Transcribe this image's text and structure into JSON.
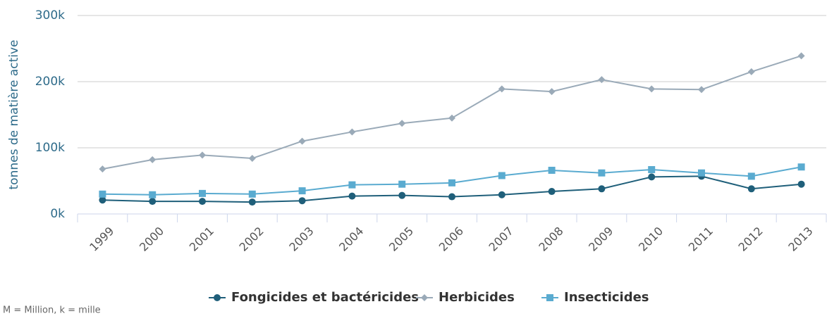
{
  "chart_data": {
    "type": "line",
    "y_label": "tonnes de matière active",
    "note": "M = Million, k = mille",
    "categories": [
      "1999",
      "2000",
      "2001",
      "2002",
      "2003",
      "2004",
      "2005",
      "2006",
      "2007",
      "2008",
      "2009",
      "2010",
      "2011",
      "2012",
      "2013"
    ],
    "series": [
      {
        "name": "Fongicides et bactéricides",
        "color": "#1f5f7a",
        "marker": "circle",
        "values": [
          21000,
          19000,
          19000,
          18000,
          20000,
          27000,
          28000,
          26000,
          29000,
          34000,
          38000,
          56000,
          57000,
          38000,
          45000
        ]
      },
      {
        "name": "Herbicides",
        "color": "#9aaab8",
        "marker": "diamond",
        "values": [
          68000,
          82000,
          89000,
          84000,
          110000,
          124000,
          137000,
          145000,
          189000,
          185000,
          203000,
          189000,
          188000,
          215000,
          239000
        ]
      },
      {
        "name": "Insecticides",
        "color": "#5aabd0",
        "marker": "square",
        "values": [
          30000,
          29000,
          31000,
          30000,
          35000,
          44000,
          45000,
          47000,
          58000,
          66000,
          62000,
          67000,
          62000,
          57000,
          71000
        ]
      }
    ],
    "ylim": [
      0,
      300000
    ],
    "yticks": [
      {
        "value": 0,
        "label": "0k"
      },
      {
        "value": 100000,
        "label": "100k"
      },
      {
        "value": 200000,
        "label": "200k"
      },
      {
        "value": 300000,
        "label": "300k"
      }
    ],
    "grid": true,
    "legend": "bottom"
  }
}
